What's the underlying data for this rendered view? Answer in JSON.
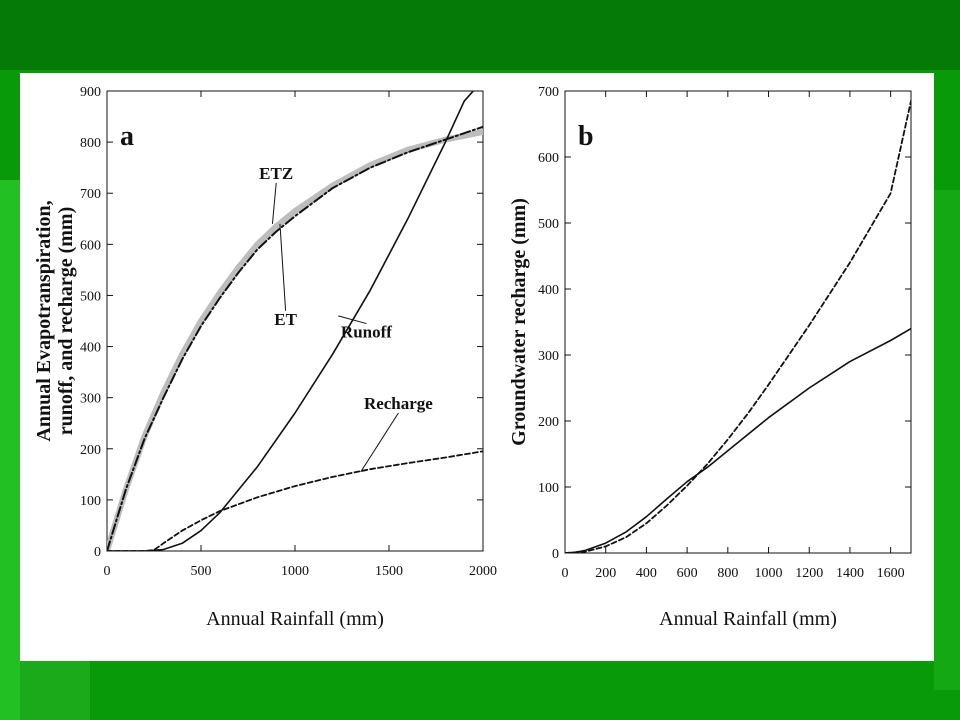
{
  "theme": {
    "slide_green": "#089a08",
    "dark_green": "#067a06",
    "light_green": "#22c022",
    "panel": "#ffffff",
    "ink": "#111111",
    "etz_gray": "#bdbdbd"
  },
  "chart_data": [
    {
      "panel_label": "a",
      "type": "line",
      "xlabel": "Annual Rainfall (mm)",
      "ylabel_line1": "Annual Evapotranspiration,",
      "ylabel_line2": "runoff, and recharge (mm)",
      "xlim": [
        0,
        2000
      ],
      "ylim": [
        0,
        900
      ],
      "xticks": [
        0,
        500,
        1000,
        1500,
        2000
      ],
      "yticks": [
        0,
        100,
        200,
        300,
        400,
        500,
        600,
        700,
        800,
        900
      ],
      "grid": false,
      "series": [
        {
          "name": "ETZ",
          "style": "thick-gray",
          "x": [
            0,
            100,
            200,
            300,
            400,
            500,
            600,
            700,
            800,
            900,
            1000,
            1200,
            1400,
            1600,
            1800,
            2000
          ],
          "values": [
            0,
            120,
            225,
            310,
            385,
            450,
            505,
            555,
            600,
            635,
            665,
            715,
            755,
            785,
            805,
            820
          ]
        },
        {
          "name": "ET",
          "style": "dash-dot",
          "x": [
            0,
            100,
            200,
            300,
            400,
            500,
            600,
            700,
            800,
            900,
            1000,
            1200,
            1400,
            1600,
            1800,
            2000
          ],
          "values": [
            0,
            120,
            220,
            300,
            375,
            440,
            495,
            545,
            590,
            625,
            655,
            710,
            750,
            780,
            805,
            830
          ]
        },
        {
          "name": "Runoff",
          "style": "solid",
          "x": [
            0,
            200,
            300,
            400,
            500,
            600,
            800,
            1000,
            1200,
            1400,
            1600,
            1800,
            1900,
            1960
          ],
          "values": [
            0,
            0,
            3,
            15,
            40,
            75,
            165,
            270,
            385,
            510,
            650,
            800,
            880,
            905
          ]
        },
        {
          "name": "Recharge",
          "style": "dashed",
          "x": [
            0,
            200,
            250,
            300,
            400,
            500,
            600,
            800,
            1000,
            1200,
            1400,
            1600,
            1800,
            2000
          ],
          "values": [
            0,
            0,
            2,
            15,
            40,
            60,
            78,
            105,
            127,
            145,
            160,
            172,
            183,
            195
          ]
        }
      ],
      "annotations": [
        {
          "text": "ETZ",
          "at": [
            900,
            720
          ],
          "target": [
            880,
            640
          ]
        },
        {
          "text": "ET",
          "at": [
            950,
            470
          ],
          "target": [
            920,
            640
          ]
        },
        {
          "text": "Runoff",
          "at": [
            1380,
            445
          ],
          "target": [
            1230,
            460
          ]
        },
        {
          "text": "Recharge",
          "at": [
            1550,
            270
          ],
          "target": [
            1350,
            155
          ]
        }
      ]
    },
    {
      "panel_label": "b",
      "type": "line",
      "xlabel": "Annual Rainfall (mm)",
      "ylabel": "Groundwater recharge (mm)",
      "xlim": [
        0,
        1700
      ],
      "ylim": [
        0,
        700
      ],
      "xticks": [
        0,
        200,
        400,
        600,
        800,
        1000,
        1200,
        1400,
        1600
      ],
      "yticks": [
        0,
        100,
        200,
        300,
        400,
        500,
        600,
        700
      ],
      "grid": false,
      "series": [
        {
          "style": "solid",
          "x": [
            0,
            50,
            100,
            200,
            300,
            400,
            500,
            600,
            700,
            800,
            1000,
            1200,
            1400,
            1600,
            1700
          ],
          "values": [
            0,
            1,
            4,
            15,
            32,
            55,
            82,
            108,
            130,
            155,
            205,
            250,
            290,
            322,
            340
          ]
        },
        {
          "style": "dashed",
          "x": [
            0,
            100,
            200,
            300,
            400,
            500,
            600,
            700,
            800,
            900,
            1000,
            1200,
            1400,
            1600,
            1700
          ],
          "values": [
            0,
            2,
            10,
            24,
            45,
            72,
            102,
            135,
            172,
            212,
            255,
            345,
            440,
            545,
            685
          ]
        }
      ]
    }
  ]
}
